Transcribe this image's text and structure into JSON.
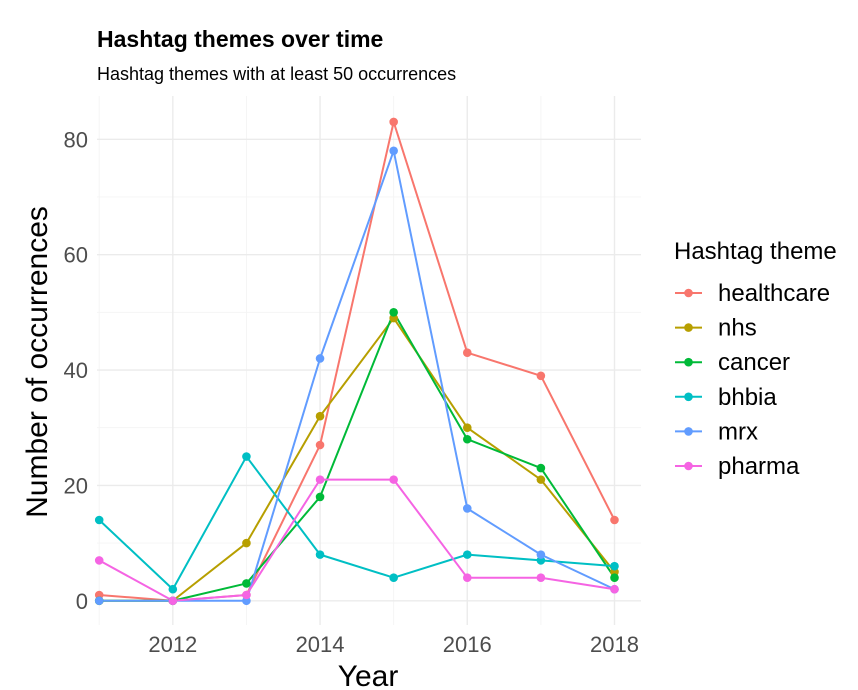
{
  "chart_data": {
    "type": "line",
    "title": "Hashtag themes over time",
    "subtitle": "Hashtag themes with at least 50 occurrences",
    "xlabel": "Year",
    "ylabel": "Number of occurrences",
    "x": [
      2011,
      2012,
      2013,
      2014,
      2015,
      2016,
      2017,
      2018
    ],
    "xticks": [
      "2012",
      "2014",
      "2016",
      "2018"
    ],
    "yticks": [
      "0",
      "20",
      "40",
      "60",
      "80"
    ],
    "xlim": [
      2010.97,
      2018.36
    ],
    "ylim": [
      -4.2,
      87.5
    ],
    "grid": true,
    "legend": {
      "title": "Hashtag theme",
      "placement": "right"
    },
    "series": [
      {
        "name": "healthcare",
        "color": "#F8766D",
        "values": [
          1,
          0,
          1,
          27,
          83,
          43,
          39,
          14
        ]
      },
      {
        "name": "nhs",
        "color": "#B79F00",
        "values": [
          0,
          0,
          10,
          32,
          49,
          30,
          21,
          5
        ]
      },
      {
        "name": "cancer",
        "color": "#00BA38",
        "values": [
          0,
          0,
          3,
          18,
          50,
          28,
          23,
          4
        ]
      },
      {
        "name": "bhbia",
        "color": "#00BFC4",
        "values": [
          14,
          2,
          25,
          8,
          4,
          8,
          7,
          6
        ]
      },
      {
        "name": "mrx",
        "color": "#619CFF",
        "values": [
          0,
          0,
          0,
          42,
          78,
          16,
          8,
          2
        ]
      },
      {
        "name": "pharma",
        "color": "#F564E3",
        "values": [
          7,
          0,
          1,
          21,
          21,
          4,
          4,
          2
        ]
      }
    ]
  }
}
